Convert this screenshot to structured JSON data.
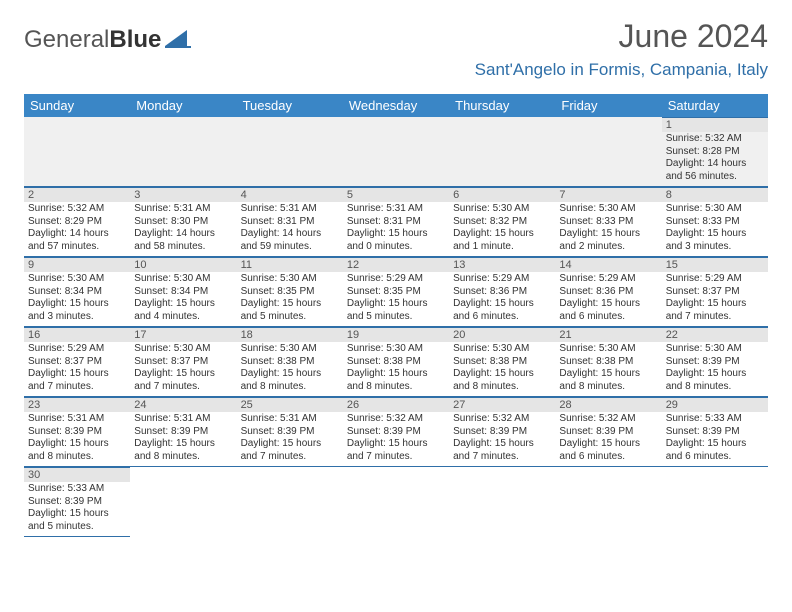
{
  "logo": {
    "text1": "General",
    "text2": "Blue"
  },
  "title": "June 2024",
  "subtitle": "Sant'Angelo in Formis, Campania, Italy",
  "colors": {
    "header_bg": "#3a86c6",
    "header_text": "#ffffff",
    "border": "#2f6fa8",
    "daynum_bg": "#e5e5e5",
    "subtitle": "#2f6fa8",
    "title": "#555555"
  },
  "columns": [
    "Sunday",
    "Monday",
    "Tuesday",
    "Wednesday",
    "Thursday",
    "Friday",
    "Saturday"
  ],
  "weeks": [
    [
      null,
      null,
      null,
      null,
      null,
      null,
      {
        "n": "1",
        "sr": "5:32 AM",
        "ss": "8:28 PM",
        "dl": "14 hours and 56 minutes."
      }
    ],
    [
      {
        "n": "2",
        "sr": "5:32 AM",
        "ss": "8:29 PM",
        "dl": "14 hours and 57 minutes."
      },
      {
        "n": "3",
        "sr": "5:31 AM",
        "ss": "8:30 PM",
        "dl": "14 hours and 58 minutes."
      },
      {
        "n": "4",
        "sr": "5:31 AM",
        "ss": "8:31 PM",
        "dl": "14 hours and 59 minutes."
      },
      {
        "n": "5",
        "sr": "5:31 AM",
        "ss": "8:31 PM",
        "dl": "15 hours and 0 minutes."
      },
      {
        "n": "6",
        "sr": "5:30 AM",
        "ss": "8:32 PM",
        "dl": "15 hours and 1 minute."
      },
      {
        "n": "7",
        "sr": "5:30 AM",
        "ss": "8:33 PM",
        "dl": "15 hours and 2 minutes."
      },
      {
        "n": "8",
        "sr": "5:30 AM",
        "ss": "8:33 PM",
        "dl": "15 hours and 3 minutes."
      }
    ],
    [
      {
        "n": "9",
        "sr": "5:30 AM",
        "ss": "8:34 PM",
        "dl": "15 hours and 3 minutes."
      },
      {
        "n": "10",
        "sr": "5:30 AM",
        "ss": "8:34 PM",
        "dl": "15 hours and 4 minutes."
      },
      {
        "n": "11",
        "sr": "5:30 AM",
        "ss": "8:35 PM",
        "dl": "15 hours and 5 minutes."
      },
      {
        "n": "12",
        "sr": "5:29 AM",
        "ss": "8:35 PM",
        "dl": "15 hours and 5 minutes."
      },
      {
        "n": "13",
        "sr": "5:29 AM",
        "ss": "8:36 PM",
        "dl": "15 hours and 6 minutes."
      },
      {
        "n": "14",
        "sr": "5:29 AM",
        "ss": "8:36 PM",
        "dl": "15 hours and 6 minutes."
      },
      {
        "n": "15",
        "sr": "5:29 AM",
        "ss": "8:37 PM",
        "dl": "15 hours and 7 minutes."
      }
    ],
    [
      {
        "n": "16",
        "sr": "5:29 AM",
        "ss": "8:37 PM",
        "dl": "15 hours and 7 minutes."
      },
      {
        "n": "17",
        "sr": "5:30 AM",
        "ss": "8:37 PM",
        "dl": "15 hours and 7 minutes."
      },
      {
        "n": "18",
        "sr": "5:30 AM",
        "ss": "8:38 PM",
        "dl": "15 hours and 8 minutes."
      },
      {
        "n": "19",
        "sr": "5:30 AM",
        "ss": "8:38 PM",
        "dl": "15 hours and 8 minutes."
      },
      {
        "n": "20",
        "sr": "5:30 AM",
        "ss": "8:38 PM",
        "dl": "15 hours and 8 minutes."
      },
      {
        "n": "21",
        "sr": "5:30 AM",
        "ss": "8:38 PM",
        "dl": "15 hours and 8 minutes."
      },
      {
        "n": "22",
        "sr": "5:30 AM",
        "ss": "8:39 PM",
        "dl": "15 hours and 8 minutes."
      }
    ],
    [
      {
        "n": "23",
        "sr": "5:31 AM",
        "ss": "8:39 PM",
        "dl": "15 hours and 8 minutes."
      },
      {
        "n": "24",
        "sr": "5:31 AM",
        "ss": "8:39 PM",
        "dl": "15 hours and 8 minutes."
      },
      {
        "n": "25",
        "sr": "5:31 AM",
        "ss": "8:39 PM",
        "dl": "15 hours and 7 minutes."
      },
      {
        "n": "26",
        "sr": "5:32 AM",
        "ss": "8:39 PM",
        "dl": "15 hours and 7 minutes."
      },
      {
        "n": "27",
        "sr": "5:32 AM",
        "ss": "8:39 PM",
        "dl": "15 hours and 7 minutes."
      },
      {
        "n": "28",
        "sr": "5:32 AM",
        "ss": "8:39 PM",
        "dl": "15 hours and 6 minutes."
      },
      {
        "n": "29",
        "sr": "5:33 AM",
        "ss": "8:39 PM",
        "dl": "15 hours and 6 minutes."
      }
    ],
    [
      {
        "n": "30",
        "sr": "5:33 AM",
        "ss": "8:39 PM",
        "dl": "15 hours and 5 minutes."
      },
      null,
      null,
      null,
      null,
      null,
      null
    ]
  ],
  "labels": {
    "sunrise": "Sunrise: ",
    "sunset": "Sunset: ",
    "daylight": "Daylight: "
  }
}
